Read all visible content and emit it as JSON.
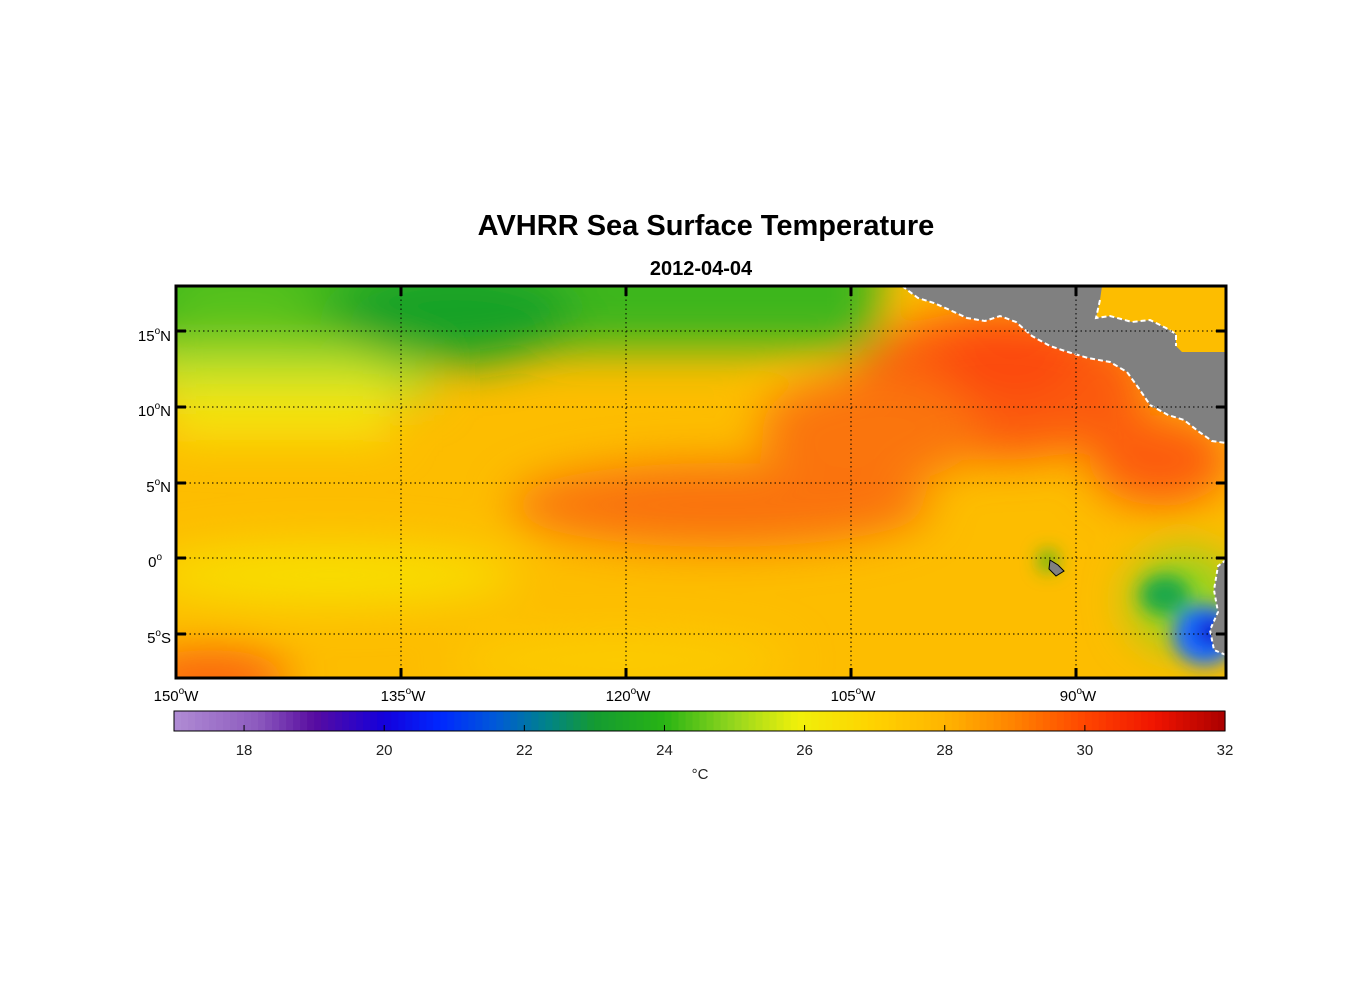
{
  "chart_data": {
    "type": "heatmap",
    "title": "AVHRR Sea Surface Temperature",
    "subtitle": "2012-04-04",
    "variable": "Sea Surface Temperature",
    "lon_range": [
      -150,
      -80
    ],
    "lat_range": [
      -8,
      18
    ],
    "x_ticks": [
      {
        "value": -150,
        "deg": "150",
        "hemi": "W"
      },
      {
        "value": -135,
        "deg": "135",
        "hemi": "W"
      },
      {
        "value": -120,
        "deg": "120",
        "hemi": "W"
      },
      {
        "value": -105,
        "deg": "105",
        "hemi": "W"
      },
      {
        "value": -90,
        "deg": "90",
        "hemi": "W"
      }
    ],
    "y_ticks": [
      {
        "value": 15,
        "deg": "15",
        "hemi": "N"
      },
      {
        "value": 10,
        "deg": "10",
        "hemi": "N"
      },
      {
        "value": 5,
        "deg": "5",
        "hemi": "N"
      },
      {
        "value": 0,
        "deg": "0",
        "hemi": ""
      },
      {
        "value": -5,
        "deg": "5",
        "hemi": "S"
      }
    ],
    "grid": true,
    "colorbar": {
      "label": "°C",
      "range": [
        17,
        32
      ],
      "ticks": [
        18,
        20,
        22,
        24,
        26,
        28,
        30,
        32
      ],
      "placement": "bottom"
    },
    "regions": [
      {
        "name": "north-cool-band",
        "lon": [
          -150,
          -108
        ],
        "lat": [
          11,
          18
        ],
        "sst": 24.5
      },
      {
        "name": "coldest-patch",
        "lon": [
          -132,
          -128
        ],
        "lat": [
          14,
          17
        ],
        "sst": 23.5
      },
      {
        "name": "equatorial-warm-tongue",
        "lon": [
          -125,
          -95
        ],
        "lat": [
          2,
          7
        ],
        "sst": 29.5
      },
      {
        "name": "central-american-warm-pool",
        "lon": [
          -107,
          -83
        ],
        "lat": [
          6,
          15
        ],
        "sst": 30.0
      },
      {
        "name": "galapagos-cool-spot",
        "lon": [
          -92,
          -90
        ],
        "lat": [
          -1,
          0
        ],
        "sst": 24.5
      },
      {
        "name": "peru-coastal-upwelling",
        "lon": [
          -84,
          -80
        ],
        "lat": [
          -8,
          -2
        ],
        "sst": 21.0
      },
      {
        "name": "southwest-warm-corner",
        "lon": [
          -150,
          -144
        ],
        "lat": [
          -8,
          -6
        ],
        "sst": 29.5
      }
    ]
  },
  "colors": {
    "land": "#808080",
    "coast": "#ffffff",
    "frame": "#000000"
  }
}
